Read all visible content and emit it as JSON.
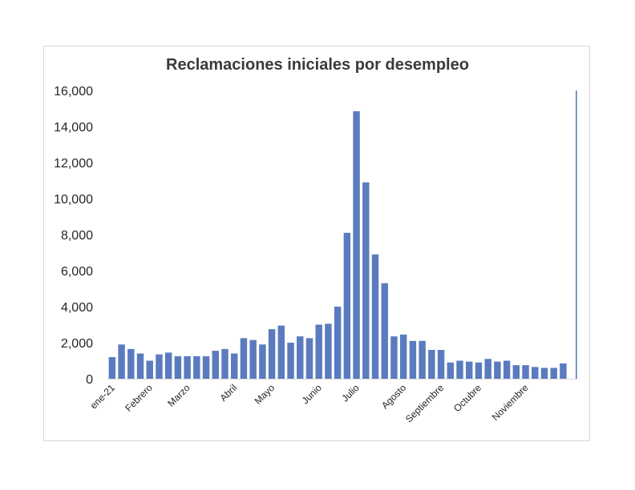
{
  "chart_data": {
    "type": "bar",
    "title": "Reclamaciones iniciales por desempleo",
    "xlabel": "",
    "ylabel": "",
    "ylim": [
      0,
      16000
    ],
    "yticks": [
      "0",
      "2,000",
      "4,000",
      "6,000",
      "8,000",
      "10,000",
      "12,000",
      "14,000",
      "16,000"
    ],
    "bar_color": "#5b7bbf",
    "month_labels": [
      {
        "label": "ene-21",
        "index": 0
      },
      {
        "label": "Febrero",
        "index": 4
      },
      {
        "label": "Marzo",
        "index": 8
      },
      {
        "label": "Abril",
        "index": 13
      },
      {
        "label": "Mayo",
        "index": 17
      },
      {
        "label": "Junio",
        "index": 22
      },
      {
        "label": "Julio",
        "index": 26
      },
      {
        "label": "Agosto",
        "index": 31
      },
      {
        "label": "Septiembre",
        "index": 35
      },
      {
        "label": "Octubre",
        "index": 39
      },
      {
        "label": "Noviembre",
        "index": 44
      }
    ],
    "values": [
      1200,
      1900,
      1650,
      1400,
      1000,
      1350,
      1450,
      1250,
      1250,
      1250,
      1250,
      1550,
      1650,
      1400,
      2250,
      2150,
      1900,
      2750,
      2950,
      2000,
      2350,
      2250,
      3000,
      3050,
      4000,
      8100,
      14850,
      10900,
      6900,
      5300,
      2350,
      2450,
      2100,
      2100,
      1600,
      1600,
      900,
      1000,
      950,
      900,
      1100,
      950,
      1000,
      750,
      750,
      650,
      600,
      600,
      850,
      16000
    ]
  }
}
